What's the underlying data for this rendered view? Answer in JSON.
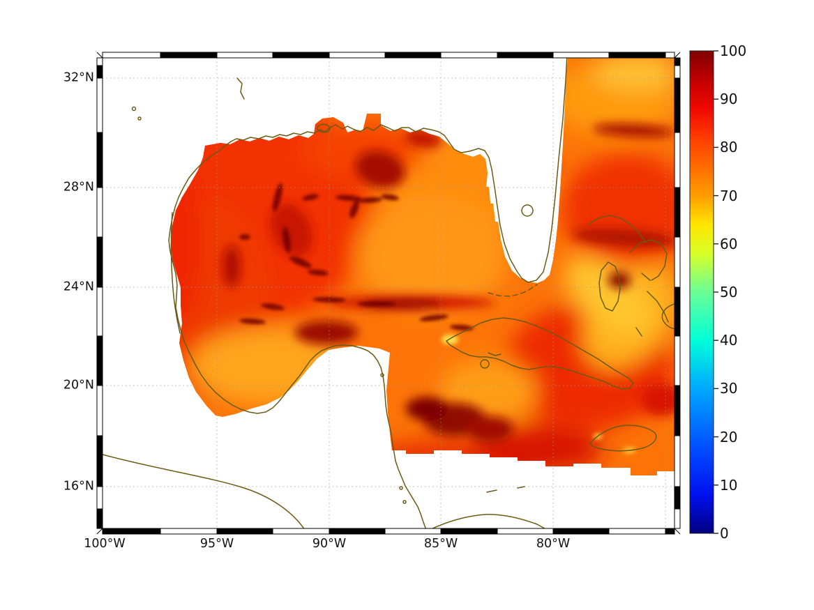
{
  "figure_title": "",
  "labels": {
    "lat": [
      "32°N",
      "28°N",
      "24°N",
      "20°N",
      "16°N"
    ],
    "lon": [
      "100°W",
      "95°W",
      "90°W",
      "85°W",
      "80°W"
    ],
    "colorbar": [
      "0",
      "10",
      "20",
      "30",
      "40",
      "50",
      "60",
      "70",
      "80",
      "90",
      "100"
    ]
  },
  "chart_data": {
    "type": "heatmap",
    "title": "",
    "xlabel": "",
    "ylabel": "",
    "region": "Gulf of Mexico, Florida, Cuba, Bahamas and northwestern Caribbean Sea",
    "x_axis": {
      "tick_labels": [
        "100°W",
        "95°W",
        "90°W",
        "85°W",
        "80°W"
      ],
      "range_deg_west": [
        100,
        74.5
      ],
      "gridlines": "dotted"
    },
    "y_axis": {
      "tick_labels": [
        "16°N",
        "20°N",
        "24°N",
        "28°N",
        "32°N"
      ],
      "range_deg_north": [
        15.2,
        33.1
      ],
      "gridlines": "dotted"
    },
    "colorbar": {
      "range": [
        0,
        100
      ],
      "tick_labels": [
        "0",
        "10",
        "20",
        "30",
        "40",
        "50",
        "60",
        "70",
        "80",
        "90",
        "100"
      ],
      "colormap": "jet",
      "stops": [
        {
          "v": 0,
          "c": "#000080"
        },
        {
          "v": 8,
          "c": "#0010f0"
        },
        {
          "v": 18,
          "c": "#0050ff"
        },
        {
          "v": 30,
          "c": "#00a8ff"
        },
        {
          "v": 40,
          "c": "#00ffd8"
        },
        {
          "v": 50,
          "c": "#6aff96"
        },
        {
          "v": 58,
          "c": "#d8ff28"
        },
        {
          "v": 64,
          "c": "#ffe600"
        },
        {
          "v": 70,
          "c": "#ff9c00"
        },
        {
          "v": 76,
          "c": "#ff6c00"
        },
        {
          "v": 82,
          "c": "#ff3c00"
        },
        {
          "v": 88,
          "c": "#f00800"
        },
        {
          "v": 94,
          "c": "#c00000"
        },
        {
          "v": 100,
          "c": "#800000"
        }
      ]
    },
    "no_data_color": "#ffffff",
    "coastline_color": "#6b5a14",
    "frame_style": "alternating black/white fancy border, 2° latitude / 2.5° longitude segments",
    "sample_grid": {
      "comment": "Coarse estimate of the plotted field read from the colors; null = land or masked (white).",
      "lons_w": [
        97.5,
        95,
        92.5,
        90,
        87.5,
        85,
        82.5,
        80,
        77.5,
        75.5
      ],
      "lats_n": [
        30,
        28,
        26,
        24,
        22,
        20,
        18
      ],
      "values": [
        [
          null,
          null,
          null,
          85,
          78,
          74,
          null,
          82,
          78,
          74
        ],
        [
          null,
          86,
          88,
          90,
          76,
          72,
          null,
          85,
          82,
          78
        ],
        [
          84,
          88,
          95,
          80,
          74,
          76,
          84,
          82,
          86,
          82
        ],
        [
          86,
          92,
          85,
          82,
          78,
          72,
          80,
          86,
          88,
          85
        ],
        [
          80,
          82,
          78,
          74,
          68,
          70,
          82,
          86,
          80,
          84
        ],
        [
          null,
          null,
          null,
          76,
          84,
          90,
          84,
          78,
          72,
          80
        ],
        [
          null,
          null,
          null,
          null,
          88,
          92,
          86,
          78,
          76,
          84
        ]
      ]
    },
    "notes": "Field plotted over ocean only; continental land, Yucatan, Florida and the area south of ~17.5°N are masked white. Values over most of the domain lie between ~65 and ~100."
  }
}
